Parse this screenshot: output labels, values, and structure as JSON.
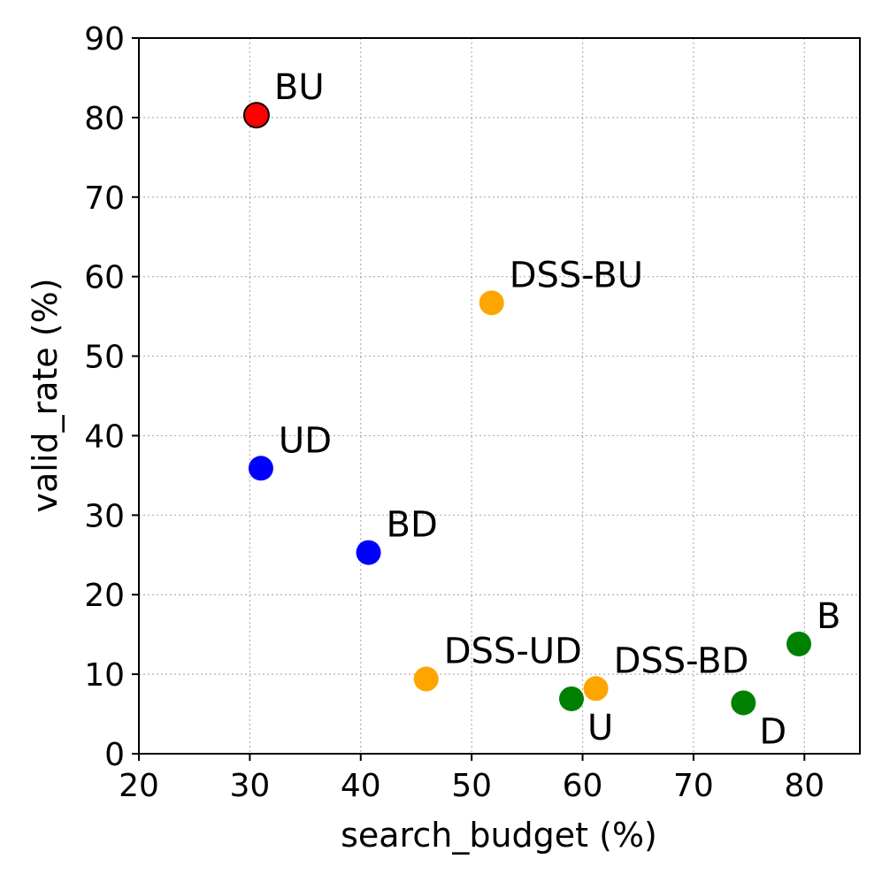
{
  "chart_data": {
    "type": "scatter",
    "xlabel": "search_budget (%)",
    "ylabel": "valid_rate (%)",
    "xlim": [
      20,
      85
    ],
    "ylim": [
      0,
      90
    ],
    "xticks": [
      20,
      30,
      40,
      50,
      60,
      70,
      80
    ],
    "yticks": [
      0,
      10,
      20,
      30,
      40,
      50,
      60,
      70,
      80,
      90
    ],
    "grid": true,
    "points": [
      {
        "label": "BU",
        "x": 30.6,
        "y": 80.3,
        "color": "#ff0000",
        "outline": "#000000",
        "label_pos": "top-right"
      },
      {
        "label": "DSS-BU",
        "x": 51.8,
        "y": 56.7,
        "color": "#ffa500",
        "label_pos": "top-right"
      },
      {
        "label": "UD",
        "x": 31.0,
        "y": 35.9,
        "color": "#0000ff",
        "label_pos": "top-right"
      },
      {
        "label": "BD",
        "x": 40.7,
        "y": 25.3,
        "color": "#0000ff",
        "label_pos": "top-right"
      },
      {
        "label": "DSS-UD",
        "x": 45.9,
        "y": 9.4,
        "color": "#ffa500",
        "label_pos": "top-right"
      },
      {
        "label": "DSS-BD",
        "x": 61.2,
        "y": 8.2,
        "color": "#ffa500",
        "label_pos": "top-right"
      },
      {
        "label": "U",
        "x": 59.0,
        "y": 6.9,
        "color": "#008000",
        "label_pos": "bottom-right"
      },
      {
        "label": "D",
        "x": 74.5,
        "y": 6.4,
        "color": "#008000",
        "label_pos": "bottom-right"
      },
      {
        "label": "B",
        "x": 79.5,
        "y": 13.8,
        "color": "#008000",
        "label_pos": "top-right"
      }
    ]
  }
}
